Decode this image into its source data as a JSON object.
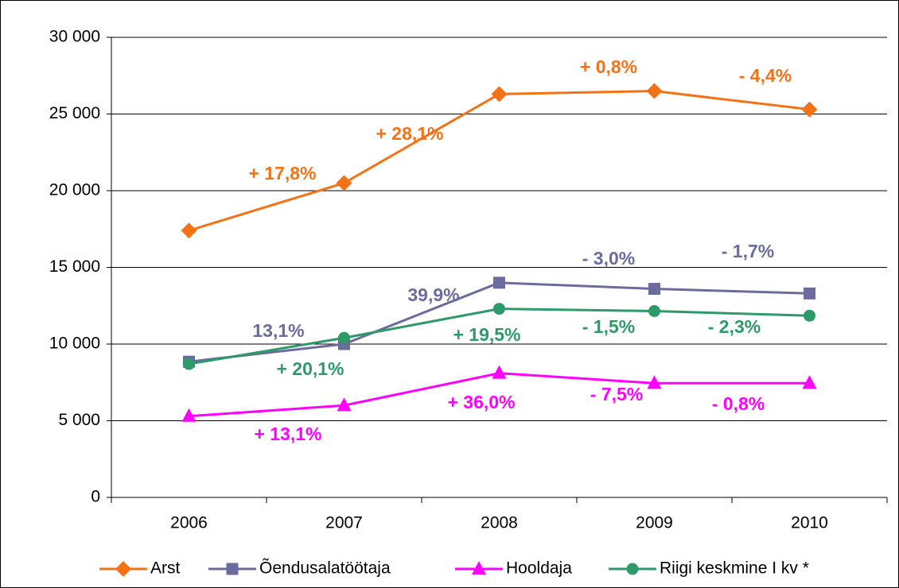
{
  "chart_data": {
    "type": "line",
    "categories": [
      "2006",
      "2007",
      "2008",
      "2009",
      "2010"
    ],
    "series": [
      {
        "name": "Arst",
        "color": "#f47216",
        "marker": "diamond",
        "values": [
          17400,
          20500,
          26300,
          26500,
          25300
        ]
      },
      {
        "name": "Õendusalatöötaja",
        "color": "#6b6b9e",
        "marker": "square",
        "values": [
          8850,
          10000,
          14000,
          13600,
          13300
        ]
      },
      {
        "name": "Hooldaja",
        "color": "#ff00ff",
        "marker": "triangle",
        "values": [
          5300,
          6000,
          8100,
          7450,
          7450
        ]
      },
      {
        "name": "Riigi keskmine I kv *",
        "color": "#2e9a6a",
        "marker": "circle",
        "values": [
          8700,
          10400,
          12300,
          12150,
          11850
        ]
      }
    ],
    "annotations": [
      {
        "text": "+ 17,8%",
        "color": "#f47216"
      },
      {
        "text": "+ 28,1%",
        "color": "#f47216"
      },
      {
        "text": "+ 0,8%",
        "color": "#f47216"
      },
      {
        "text": "- 4,4%",
        "color": "#f47216"
      },
      {
        "text": "13,1%",
        "color": "#6b6b9e"
      },
      {
        "text": "39,9%",
        "color": "#6b6b9e"
      },
      {
        "text": "- 3,0%",
        "color": "#6b6b9e"
      },
      {
        "text": "- 1,7%",
        "color": "#6b6b9e"
      },
      {
        "text": "+ 20,1%",
        "color": "#2e9a6a"
      },
      {
        "text": "+ 19,5%",
        "color": "#2e9a6a"
      },
      {
        "text": "- 1,5%",
        "color": "#2e9a6a"
      },
      {
        "text": "- 2,3%",
        "color": "#2e9a6a"
      },
      {
        "text": "+ 13,1%",
        "color": "#ff00ff"
      },
      {
        "text": "+ 36,0%",
        "color": "#ff00ff"
      },
      {
        "text": "- 7,5%",
        "color": "#ff00ff"
      },
      {
        "text": "- 0,8%",
        "color": "#ff00ff"
      }
    ],
    "ylim": [
      0,
      30000
    ],
    "yticks": [
      0,
      {
        "value": 5000,
        "label": "5 000"
      },
      {
        "value": 10000,
        "label": "10 000"
      },
      {
        "value": 15000,
        "label": "15 000"
      },
      {
        "value": 20000,
        "label": "20 000"
      },
      {
        "value": 25000,
        "label": "25 000"
      },
      {
        "value": 30000,
        "label": "30 000"
      }
    ],
    "grid": true,
    "legend": "bottom"
  }
}
